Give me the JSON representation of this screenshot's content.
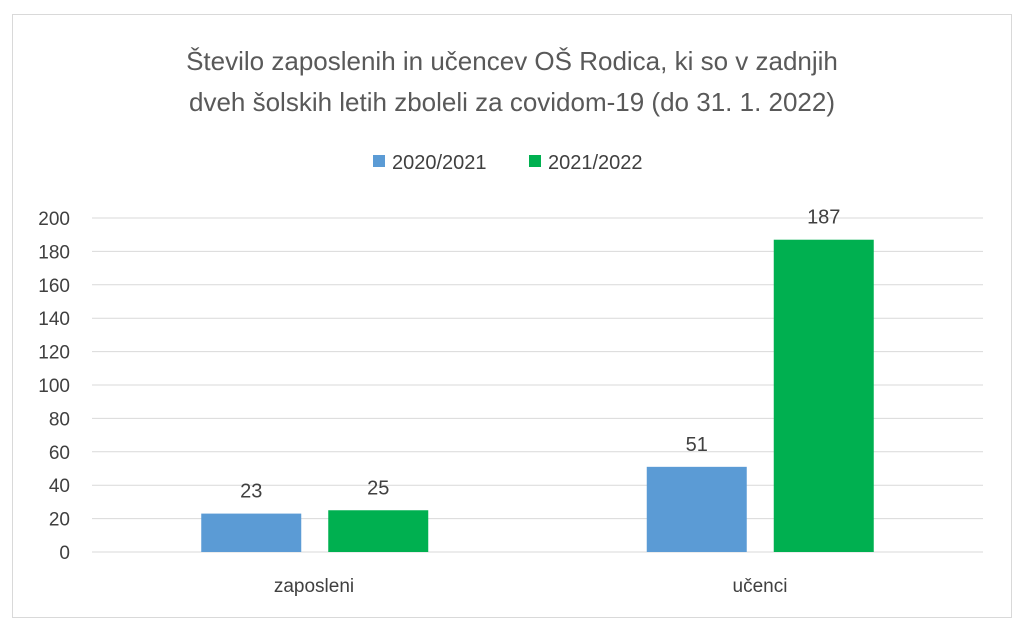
{
  "chart_data": {
    "type": "bar",
    "title_lines": [
      "Število zaposlenih in učencev OŠ Rodica, ki so v zadnjih",
      "dveh šolskih letih zboleli za covidom-19 (do 31. 1. 2022)"
    ],
    "categories": [
      "zaposleni",
      "učenci"
    ],
    "series": [
      {
        "name": "2020/2021",
        "values": [
          23,
          51
        ],
        "color": "#5b9bd5"
      },
      {
        "name": "2021/2022",
        "values": [
          25,
          187
        ],
        "color": "#00b050"
      }
    ],
    "ylim": [
      0,
      200
    ],
    "yticks": [
      0,
      20,
      40,
      60,
      80,
      100,
      120,
      140,
      160,
      180,
      200
    ],
    "grid": true,
    "legend_position": "top-center",
    "data_labels": true
  }
}
